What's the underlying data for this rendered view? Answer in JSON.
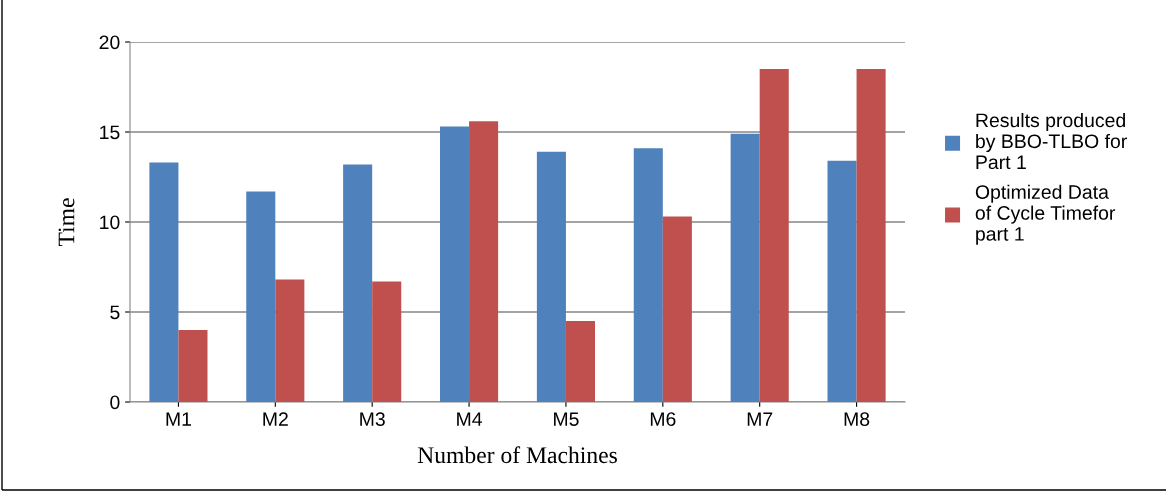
{
  "chart_data": {
    "type": "bar",
    "xlabel": "Number of Machines",
    "ylabel": "Time",
    "categories": [
      "M1",
      "M2",
      "M3",
      "M4",
      "M5",
      "M6",
      "M7",
      "M8"
    ],
    "series": [
      {
        "name": "Results produced by BBO-TLBO for Part 1",
        "color": "#4f81bd",
        "values": [
          13.3,
          11.7,
          13.2,
          15.3,
          13.9,
          14.1,
          14.9,
          13.4
        ]
      },
      {
        "name": "Optimized Data of Cycle Timefor part 1",
        "color": "#c0504d",
        "values": [
          4.0,
          6.8,
          6.7,
          15.6,
          4.5,
          10.3,
          18.5,
          18.5
        ]
      }
    ],
    "ylim": [
      0,
      20
    ],
    "yticks": [
      0,
      5,
      10,
      15,
      20
    ],
    "grid": "y",
    "legend": "right"
  }
}
